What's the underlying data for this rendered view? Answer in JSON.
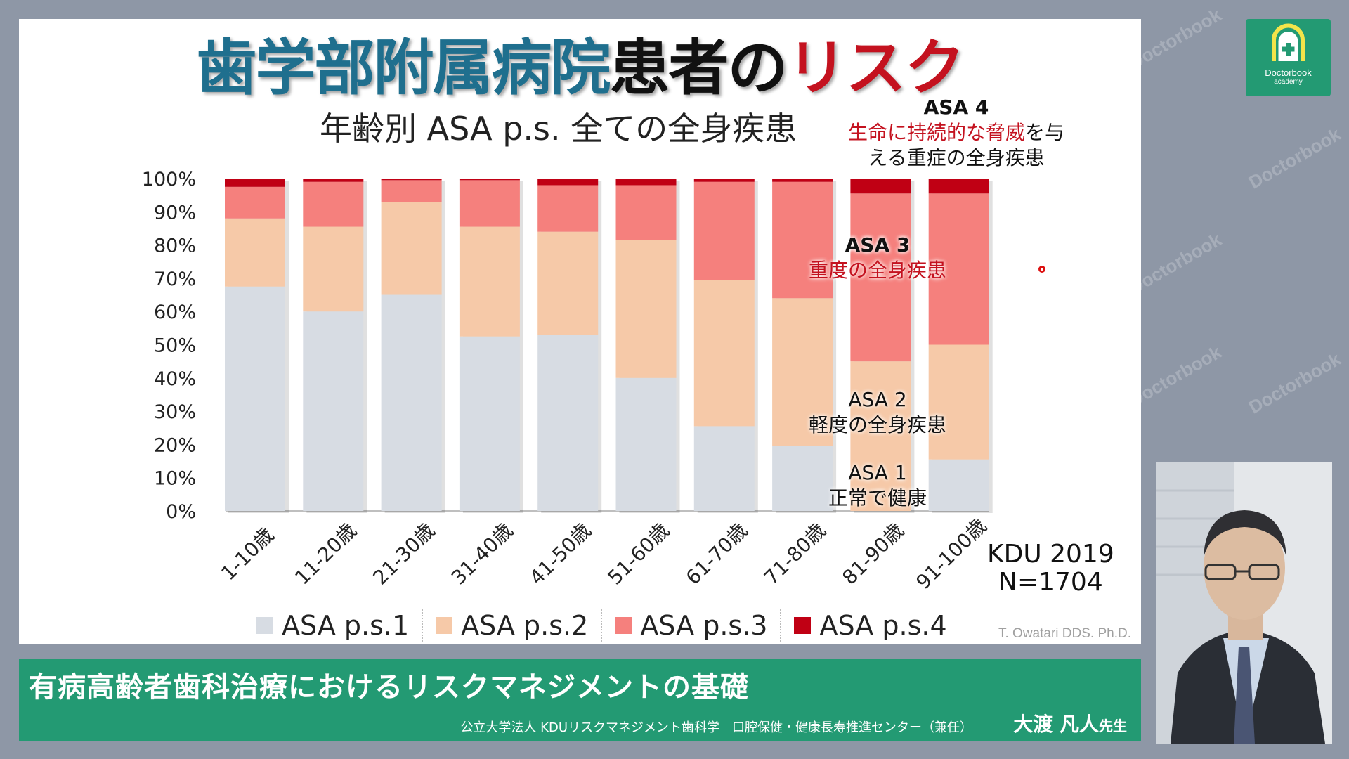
{
  "header": {
    "title_part1": "歯学部附属病院",
    "title_part2": "患者の",
    "title_part3": "リスク",
    "subtitle": "年齢別 ASA p.s. 全ての全身疾患"
  },
  "annotations": {
    "asa4_head": "ASA 4",
    "asa4_red": "生命に持続的な脅威",
    "asa4_rest1": "を与",
    "asa4_line2": "える重症の全身疾患",
    "asa3_head": "ASA 3",
    "asa3_desc": "重度の全身疾患",
    "asa2_head": "ASA 2",
    "asa2_desc": "軽度の全身疾患",
    "asa1_head": "ASA 1",
    "asa1_desc": "正常で健康"
  },
  "note": {
    "line1": "KDU 2019",
    "line2": "N=1704"
  },
  "credit": "T. Owatari DDS. Ph.D.",
  "banner": {
    "title": "有病高齢者歯科治療におけるリスクマネジメントの基礎",
    "affiliation": "公立大学法人 KDUリスクマネジメント歯科学　口腔保健・健康長寿推進センター（兼任）",
    "presenter": "大渡 凡人",
    "honorific": "先生"
  },
  "logo": {
    "name": "Doctorbook",
    "sub": "academy"
  },
  "watermark": "Doctorbook",
  "colors": {
    "ps1": "#d7dce3",
    "ps2": "#f6c9a8",
    "ps3": "#f5807d",
    "ps4": "#c00014",
    "accent": "#239a73"
  },
  "chart_data": {
    "type": "bar",
    "stacked": true,
    "percent": true,
    "categories": [
      "1-10歳",
      "11-20歳",
      "21-30歳",
      "31-40歳",
      "41-50歳",
      "51-60歳",
      "61-70歳",
      "71-80歳",
      "81-90歳",
      "91-100歳"
    ],
    "series": [
      {
        "name": "ASA p.s.1",
        "values": [
          67.5,
          60,
          65,
          52.5,
          53,
          40,
          25.5,
          19.5,
          0,
          15.5
        ]
      },
      {
        "name": "ASA p.s.2",
        "values": [
          20.5,
          25.5,
          28,
          33,
          31,
          41.5,
          44,
          44.5,
          45,
          34.5
        ]
      },
      {
        "name": "ASA p.s.3",
        "values": [
          9.5,
          13.5,
          6.5,
          14,
          14,
          16.5,
          29.5,
          35,
          50.5,
          45.5
        ]
      },
      {
        "name": "ASA p.s.4",
        "values": [
          2.5,
          1,
          0.5,
          0.5,
          2,
          2,
          1,
          1,
          4.5,
          4.5
        ]
      }
    ],
    "yticks": [
      "0%",
      "10%",
      "20%",
      "30%",
      "40%",
      "50%",
      "60%",
      "70%",
      "80%",
      "90%",
      "100%"
    ],
    "ylim": [
      0,
      100
    ],
    "legend": "bottom"
  }
}
